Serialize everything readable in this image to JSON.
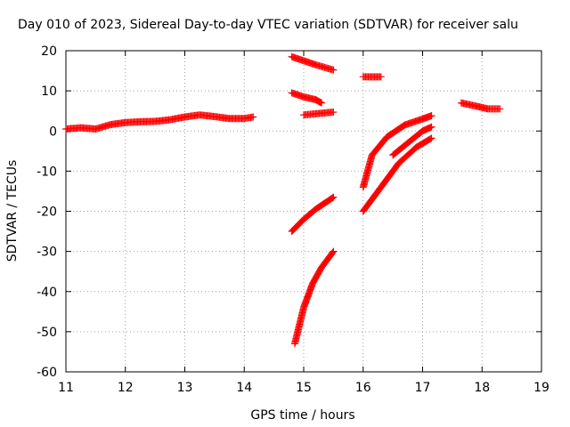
{
  "chart_data": {
    "type": "scatter",
    "title": "Day 010 of 2023, Sidereal Day-to-day VTEC variation (SDTVAR) for receiver salu",
    "xlabel": "GPS time / hours",
    "ylabel": "SDTVAR / TECUs",
    "xlim": [
      11,
      19
    ],
    "ylim": [
      -60,
      20
    ],
    "x_ticks": [
      11,
      12,
      13,
      14,
      15,
      16,
      17,
      18,
      19
    ],
    "y_ticks": [
      -60,
      -50,
      -40,
      -30,
      -20,
      -10,
      0,
      10,
      20
    ],
    "grid": true,
    "marker": "plus",
    "color": "#ff0000",
    "series": [
      {
        "name": "s1",
        "x": [
          11.0,
          11.25,
          11.5,
          11.75,
          12.0,
          12.25,
          12.5,
          12.75,
          13.0,
          13.25,
          13.5,
          13.75,
          14.0,
          14.15
        ],
        "y": [
          0.5,
          0.8,
          0.5,
          1.6,
          2.1,
          2.3,
          2.4,
          2.8,
          3.5,
          4.0,
          3.6,
          3.1,
          3.1,
          3.5
        ]
      },
      {
        "name": "s2",
        "x": [
          14.8,
          15.0,
          15.2,
          15.5
        ],
        "y": [
          18.5,
          17.5,
          16.5,
          15.2
        ]
      },
      {
        "name": "s3",
        "x": [
          14.8,
          15.0,
          15.2,
          15.3
        ],
        "y": [
          9.5,
          8.5,
          7.8,
          7.0
        ]
      },
      {
        "name": "s4",
        "x": [
          15.0,
          15.2,
          15.5
        ],
        "y": [
          4.0,
          4.3,
          4.7
        ]
      },
      {
        "name": "s5",
        "x": [
          16.0,
          16.3
        ],
        "y": [
          13.5,
          13.5
        ]
      },
      {
        "name": "s6",
        "x": [
          14.8,
          15.0,
          15.2,
          15.5
        ],
        "y": [
          -25.0,
          -22.0,
          -19.5,
          -16.5
        ]
      },
      {
        "name": "s7",
        "x": [
          14.85,
          15.0,
          15.15,
          15.3,
          15.5
        ],
        "y": [
          -53.0,
          -44.0,
          -38.0,
          -34.0,
          -30.0
        ]
      },
      {
        "name": "s8",
        "x": [
          16.0,
          16.15,
          16.4,
          16.7,
          17.0,
          17.15
        ],
        "y": [
          -14.0,
          -6.0,
          -1.5,
          1.5,
          3.0,
          3.8
        ]
      },
      {
        "name": "s9",
        "x": [
          16.5,
          16.75,
          17.0,
          17.15
        ],
        "y": [
          -6.0,
          -3.0,
          0.0,
          1.0
        ]
      },
      {
        "name": "s10",
        "x": [
          16.0,
          16.3,
          16.6,
          16.9,
          17.15
        ],
        "y": [
          -20.0,
          -14.0,
          -8.0,
          -4.0,
          -1.8
        ]
      },
      {
        "name": "s11",
        "x": [
          17.65,
          17.9,
          18.1,
          18.3
        ],
        "y": [
          7.0,
          6.2,
          5.5,
          5.5
        ]
      }
    ]
  }
}
